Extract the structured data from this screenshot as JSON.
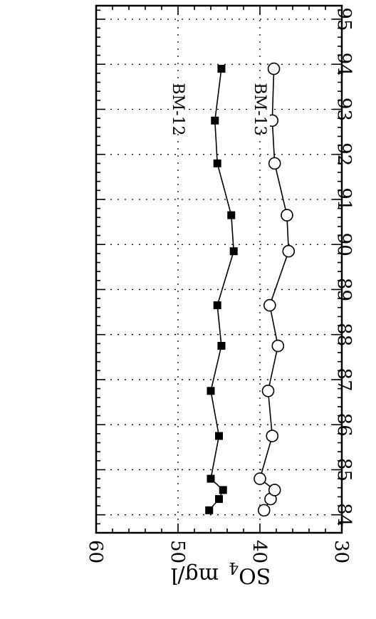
{
  "chart_data": {
    "type": "scatter",
    "orientation": "rotated-90",
    "x_label": "",
    "y_label": "SO",
    "y_label_subscript": "4",
    "y_label_unit": "mg/l",
    "xlim": [
      83.6,
      95.3
    ],
    "ylim": [
      30,
      60
    ],
    "x_ticks": [
      84,
      85,
      86,
      87,
      88,
      89,
      90,
      91,
      92,
      93,
      94,
      95
    ],
    "y_ticks": [
      30,
      40,
      50,
      60
    ],
    "grid": true,
    "series": [
      {
        "name": "BM-12",
        "marker": "filled-square",
        "x": [
          84.1,
          84.35,
          84.55,
          84.8,
          85.75,
          86.75,
          87.75,
          88.65,
          89.85,
          90.65,
          91.8,
          92.75,
          93.9
        ],
        "y": [
          46.2,
          45.0,
          44.5,
          46.0,
          45.0,
          46.0,
          44.7,
          45.2,
          43.2,
          43.5,
          45.2,
          45.5,
          44.7
        ]
      },
      {
        "name": "BM-13",
        "marker": "open-circle",
        "x": [
          84.1,
          84.35,
          84.55,
          84.8,
          85.75,
          86.75,
          87.75,
          88.65,
          89.85,
          90.65,
          91.8,
          92.75,
          93.9
        ],
        "y": [
          39.5,
          38.7,
          38.2,
          40.0,
          38.5,
          39.0,
          37.8,
          38.8,
          36.5,
          36.7,
          38.2,
          38.5,
          38.3
        ]
      }
    ],
    "annotations": [
      {
        "text": "BM-12",
        "x": 93.0,
        "y": 50.0
      },
      {
        "text": "BM-13",
        "x": 93.0,
        "y": 40.0
      }
    ]
  }
}
